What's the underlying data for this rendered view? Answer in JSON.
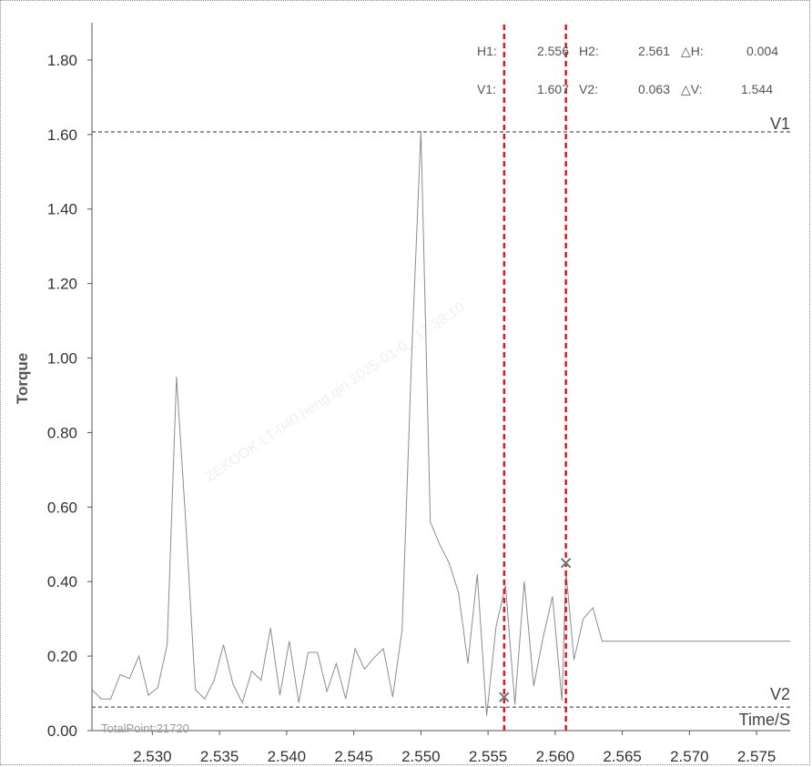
{
  "chart_data": {
    "type": "line",
    "ylabel": "Torque",
    "xlabel": "Time/S",
    "xlim": [
      2.5255,
      2.5775
    ],
    "ylim": [
      0.0,
      1.9
    ],
    "x_ticks": [
      2.53,
      2.535,
      2.54,
      2.545,
      2.55,
      2.555,
      2.56,
      2.565,
      2.57,
      2.575
    ],
    "y_ticks": [
      0.0,
      0.2,
      0.4,
      0.6,
      0.8,
      1.0,
      1.2,
      1.4,
      1.6,
      1.8
    ],
    "x_tick_labels": [
      "2.530",
      "2.535",
      "2.540",
      "2.545",
      "2.550",
      "2.555",
      "2.560",
      "2.565",
      "2.570",
      "2.575"
    ],
    "y_tick_labels": [
      "0.00",
      "0.20",
      "0.40",
      "0.60",
      "0.80",
      "1.00",
      "1.20",
      "1.40",
      "1.60",
      "1.80"
    ],
    "grid": false,
    "line_color": "#8c8c8c",
    "series": [
      {
        "x": [
          2.5255,
          2.5262,
          2.5269,
          2.5276,
          2.5283,
          2.529,
          2.5297,
          2.5304,
          2.5311,
          2.5318,
          2.5325,
          2.5332,
          2.5339,
          2.5346,
          2.5353,
          2.536,
          2.5367,
          2.5374,
          2.5381,
          2.5388,
          2.5395,
          2.5402,
          2.5409,
          2.5416,
          2.5423,
          2.543,
          2.5437,
          2.5444,
          2.5451,
          2.5458,
          2.5465,
          2.5472,
          2.5479,
          2.5486,
          2.5493,
          2.55,
          2.5507,
          2.5514,
          2.5521,
          2.5528,
          2.5535,
          2.5542,
          2.5549,
          2.5556,
          2.5563,
          2.557,
          2.5577,
          2.5584,
          2.5591,
          2.5598,
          2.5605,
          2.5608,
          2.5614,
          2.5621,
          2.5628,
          2.5635,
          2.5642,
          2.5649,
          2.5656,
          2.5663,
          2.567,
          2.5677,
          2.5684,
          2.5691,
          2.5698,
          2.5705,
          2.5712,
          2.5719,
          2.5726,
          2.5733,
          2.574,
          2.5747,
          2.5754,
          2.5761,
          2.5768,
          2.5775
        ],
        "values": [
          0.11,
          0.085,
          0.085,
          0.15,
          0.14,
          0.2,
          0.095,
          0.115,
          0.23,
          0.95,
          0.55,
          0.11,
          0.085,
          0.135,
          0.23,
          0.125,
          0.075,
          0.16,
          0.135,
          0.275,
          0.095,
          0.24,
          0.075,
          0.21,
          0.21,
          0.105,
          0.18,
          0.085,
          0.22,
          0.165,
          0.195,
          0.22,
          0.09,
          0.27,
          1.0,
          1.61,
          0.56,
          0.5,
          0.45,
          0.37,
          0.18,
          0.42,
          0.04,
          0.28,
          0.39,
          0.07,
          0.4,
          0.12,
          0.25,
          0.36,
          0.08,
          0.43,
          0.19,
          0.3,
          0.33,
          0.24,
          0.24,
          0.24,
          0.24,
          0.24,
          0.24,
          0.24,
          0.24,
          0.24,
          0.24,
          0.24,
          0.24,
          0.24,
          0.24,
          0.24,
          0.24,
          0.24,
          0.24,
          0.24,
          0.24,
          0.24
        ]
      }
    ],
    "reference_lines": [
      {
        "label": "V1",
        "value": 1.607
      },
      {
        "label": "V2",
        "value": 0.063
      }
    ],
    "cursors": [
      {
        "label": "H1",
        "value": 2.5562,
        "marker_y": 0.09
      },
      {
        "label": "H2",
        "value": 2.5608,
        "marker_y": 0.45
      }
    ]
  },
  "readout": {
    "h1_label": "H1:",
    "h1_value": "2.556",
    "h2_label": "H2:",
    "h2_value": "2.561",
    "dh_label": "△H:",
    "dh_value": "0.004",
    "v1_label": "V1:",
    "v1_value": "1.607",
    "v2_label": "V2:",
    "v2_value": "0.063",
    "dv_label": "△V:",
    "dv_value": "1.544"
  },
  "ref_labels": {
    "v1": "V1",
    "v2": "V2"
  },
  "total_points": "TotalPoint:21720",
  "watermark": "ZEKOOK-LT-040  heng.qin  2025-01-0_  17:38:10",
  "colors": {
    "cursor": "#e8141b",
    "reference": "#666666",
    "trace": "#8c8c8c"
  }
}
